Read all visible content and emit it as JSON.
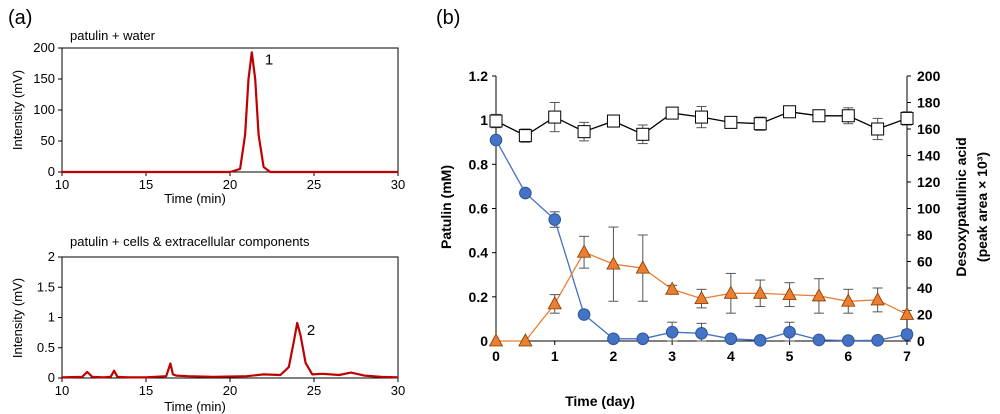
{
  "panels": {
    "a": "(a)",
    "b": "(b)"
  },
  "chart_data": [
    {
      "type": "line",
      "panel": "(a)",
      "title": "patulin + water",
      "xlabel": "Time (min)",
      "ylabel": "Intensity (mV)",
      "xlim": [
        10,
        30
      ],
      "ylim": [
        0,
        200
      ],
      "xticks": [
        "10",
        "15",
        "20",
        "25",
        "30"
      ],
      "yticks": [
        "0",
        "50",
        "100",
        "150",
        "200"
      ],
      "color": "#c00000",
      "series": [
        {
          "x": [
            10,
            15,
            20,
            20.6,
            20.9,
            21.1,
            21.3,
            21.5,
            21.7,
            22.0,
            22.4,
            25,
            30
          ],
          "y": [
            0,
            0,
            0,
            5,
            60,
            150,
            193,
            150,
            60,
            8,
            0,
            0,
            0
          ]
        }
      ],
      "annotations": [
        {
          "text": "1",
          "x": 21.6,
          "y": 193
        }
      ]
    },
    {
      "type": "line",
      "panel": "(a)",
      "title": "patulin + cells & extracellular components",
      "xlabel": "Time (min)",
      "ylabel": "Intensity (mV)",
      "xlim": [
        10,
        30
      ],
      "ylim": [
        0,
        2
      ],
      "xticks": [
        "10",
        "15",
        "20",
        "25",
        "30"
      ],
      "yticks": [
        "0",
        "0.5",
        "1",
        "1.5",
        "2"
      ],
      "color": "#c00000",
      "series": [
        {
          "x": [
            10,
            11.2,
            11.5,
            11.8,
            12.5,
            12.9,
            13.1,
            13.3,
            14,
            15,
            16.2,
            16.45,
            16.6,
            16.8,
            17.5,
            19,
            21,
            22,
            23,
            23.5,
            23.8,
            24.0,
            24.2,
            24.5,
            24.9,
            25.5,
            26.5,
            27.2,
            28,
            29,
            30
          ],
          "y": [
            0.01,
            0.02,
            0.1,
            0.02,
            0.01,
            0.02,
            0.12,
            0.02,
            0.01,
            0.01,
            0.03,
            0.24,
            0.06,
            0.04,
            0.03,
            0.02,
            0.03,
            0.06,
            0.05,
            0.18,
            0.6,
            0.91,
            0.7,
            0.25,
            0.06,
            0.07,
            0.05,
            0.09,
            0.04,
            0.02,
            0.01
          ]
        }
      ],
      "annotations": [
        {
          "text": "2",
          "x": 24.1,
          "y": 0.91
        }
      ]
    },
    {
      "type": "line",
      "panel": "(b)",
      "xlabel": "Time (day)",
      "ylabel": "Patulin (mM)",
      "ylabel_right": [
        "Desoxypatulinic acid",
        "(peak area × 10³)"
      ],
      "xlim": [
        0,
        7
      ],
      "ylim": [
        0,
        1.2
      ],
      "ylim_right": [
        0,
        200
      ],
      "xticks": [
        "0",
        "1",
        "2",
        "3",
        "4",
        "5",
        "6",
        "7"
      ],
      "yticks": [
        "0",
        "0.2",
        "0.4",
        "0.6",
        "0.8",
        "1",
        "1.2"
      ],
      "yticks_right": [
        "0",
        "20",
        "40",
        "60",
        "80",
        "100",
        "120",
        "140",
        "160",
        "180",
        "200"
      ],
      "x": [
        0,
        0.5,
        1,
        1.5,
        2,
        2.5,
        3,
        3.5,
        4,
        4.5,
        5,
        5.5,
        6,
        6.5,
        7
      ],
      "series": [
        {
          "axis": "right",
          "marker": "square",
          "color": "#000000",
          "fill": "#ffffff",
          "values": [
            166,
            155,
            169,
            158,
            166,
            156,
            172,
            169,
            165,
            164,
            173,
            170,
            170,
            160,
            168
          ],
          "errors": [
            5,
            5,
            11,
            7,
            3,
            7,
            4,
            8,
            3,
            5,
            3,
            4,
            6,
            8,
            5
          ]
        },
        {
          "axis": "left",
          "marker": "circle",
          "color": "#4472c4",
          "fill": "#4472c4",
          "values": [
            0.91,
            0.67,
            0.55,
            0.12,
            0.01,
            0.01,
            0.04,
            0.035,
            0.01,
            0.003,
            0.04,
            0.005,
            0.002,
            0.003,
            0.03
          ],
          "errors": [
            0,
            0,
            0.035,
            0,
            0.01,
            0.01,
            0.045,
            0.045,
            0.01,
            0.005,
            0.045,
            0.005,
            0.005,
            0.005,
            0.02
          ]
        },
        {
          "axis": "right",
          "marker": "triangle",
          "color": "#ed7d31",
          "fill": "#ed7d31",
          "values": [
            0,
            0,
            28,
            67,
            58,
            55,
            39,
            32,
            36,
            36,
            35,
            34,
            30,
            31,
            20
          ],
          "errors": [
            0,
            0,
            7,
            12,
            28,
            25,
            3,
            7,
            15,
            10,
            9,
            13,
            9,
            9,
            3
          ]
        }
      ]
    }
  ]
}
